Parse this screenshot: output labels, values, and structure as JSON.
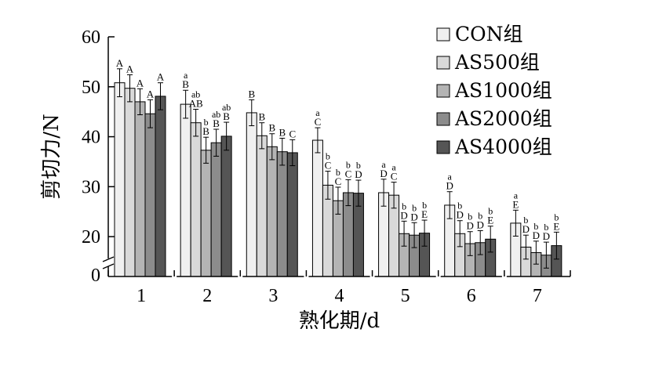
{
  "chart_data": {
    "type": "bar",
    "title": "",
    "xlabel": "熟化期/d",
    "ylabel": "剪切力/N",
    "y_break": true,
    "ylim": [
      15,
      60
    ],
    "y_ticks": [
      20,
      30,
      40,
      50,
      60
    ],
    "y_break_label": "0",
    "categories": [
      "1",
      "2",
      "3",
      "4",
      "5",
      "6",
      "7"
    ],
    "legend_position": "top-right",
    "series": [
      {
        "name": "CON组",
        "color": "#f0f0f0",
        "values": [
          50.8,
          46.5,
          44.8,
          39.3,
          28.8,
          26.3,
          22.7
        ],
        "errors": [
          2.8,
          2.8,
          2.6,
          2.5,
          2.7,
          2.7,
          2.6
        ],
        "labels": [
          "A",
          "a\nB",
          "B",
          "a\nC",
          "a\nD",
          "a\nD",
          "a\nE"
        ]
      },
      {
        "name": "AS500组",
        "color": "#d9d9d9",
        "values": [
          49.7,
          42.8,
          40.2,
          30.3,
          28.3,
          20.6,
          17.9
        ],
        "errors": [
          2.7,
          2.7,
          2.6,
          2.8,
          2.6,
          2.6,
          2.4
        ],
        "labels": [
          "A",
          "ab\nAB",
          "B",
          "b\nC",
          "a\nC",
          "b\nD",
          "b\nD"
        ]
      },
      {
        "name": "AS1000组",
        "color": "#b4b4b4",
        "values": [
          47.0,
          37.3,
          38.0,
          27.2,
          20.6,
          18.6,
          16.8
        ],
        "errors": [
          2.6,
          2.6,
          2.6,
          2.7,
          2.5,
          2.4,
          2.3
        ],
        "labels": [
          "A",
          "b\nB",
          "B",
          "b\nC",
          "b\nD",
          "b\nD",
          "b\nD"
        ]
      },
      {
        "name": "AS2000组",
        "color": "#8c8c8c",
        "values": [
          44.6,
          38.8,
          37.0,
          28.8,
          20.3,
          18.8,
          16.3
        ],
        "errors": [
          2.8,
          2.7,
          2.7,
          2.6,
          2.5,
          2.4,
          2.6
        ],
        "labels": [
          "A",
          "ab\nB",
          "B",
          "b\nC",
          "b\nD",
          "b\nD",
          "b\nD"
        ]
      },
      {
        "name": "AS4000组",
        "color": "#555555",
        "values": [
          48.1,
          40.1,
          36.8,
          28.7,
          20.7,
          19.5,
          18.2
        ],
        "errors": [
          2.7,
          2.8,
          2.6,
          2.6,
          2.6,
          2.6,
          2.7
        ],
        "labels": [
          "A",
          "ab\nB",
          "C",
          "b\nD",
          "b\nE",
          "b\nE",
          "b\nE"
        ]
      }
    ]
  }
}
